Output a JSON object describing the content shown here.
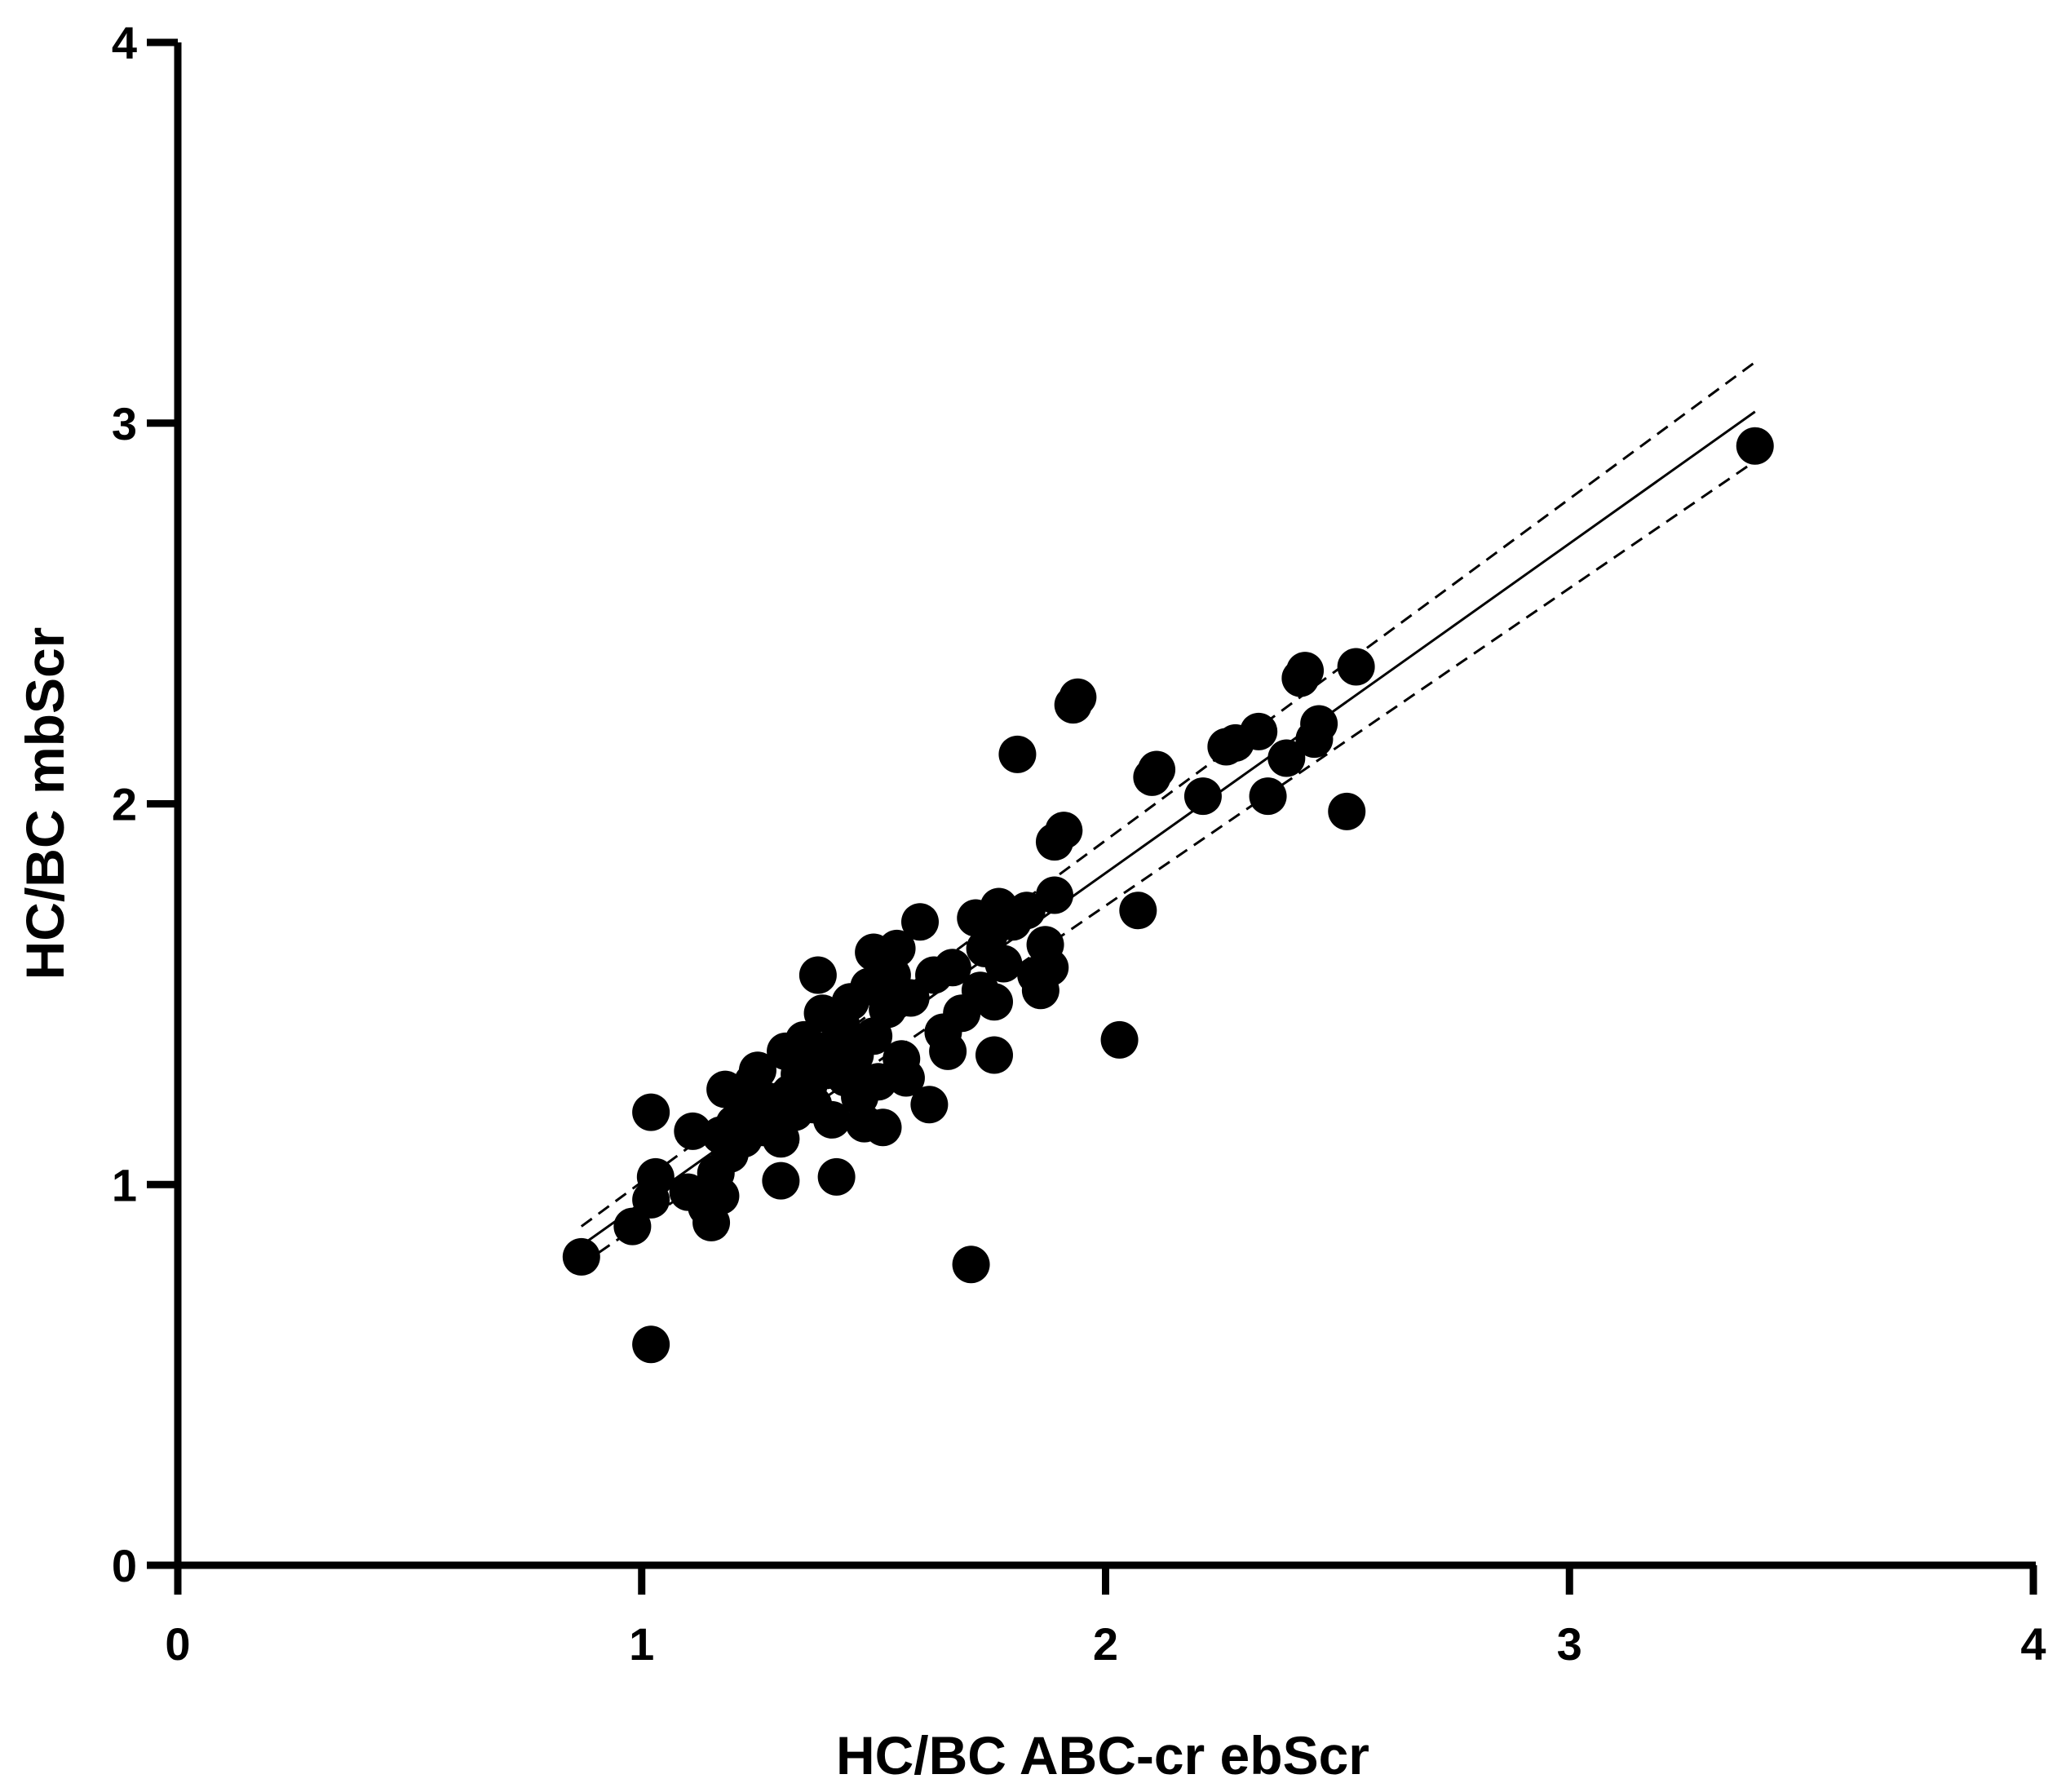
{
  "chart_data": {
    "type": "scatter",
    "title": "",
    "xlabel": "HC/BC ABC-cr ebScr",
    "ylabel": "HC/BC mbScr",
    "xlim": [
      0,
      4
    ],
    "ylim": [
      0,
      4
    ],
    "xticks": [
      "0",
      "1",
      "2",
      "3",
      "4"
    ],
    "yticks": [
      "0",
      "1",
      "2",
      "3",
      "4"
    ],
    "grid": false,
    "legend": "none",
    "colors": {
      "points": "#000000",
      "axes": "#000000",
      "fit_line": "#000000",
      "ci_line": "#000000"
    },
    "points": [
      {
        "x": 0.87,
        "y": 0.81
      },
      {
        "x": 0.98,
        "y": 0.89
      },
      {
        "x": 1.02,
        "y": 0.96
      },
      {
        "x": 1.03,
        "y": 1.02
      },
      {
        "x": 1.02,
        "y": 1.19
      },
      {
        "x": 1.02,
        "y": 0.58
      },
      {
        "x": 1.1,
        "y": 0.98
      },
      {
        "x": 1.11,
        "y": 1.14
      },
      {
        "x": 1.14,
        "y": 0.94
      },
      {
        "x": 1.15,
        "y": 0.9
      },
      {
        "x": 1.17,
        "y": 0.97
      },
      {
        "x": 1.16,
        "y": 1.03
      },
      {
        "x": 1.17,
        "y": 1.13
      },
      {
        "x": 1.18,
        "y": 1.25
      },
      {
        "x": 1.19,
        "y": 1.08
      },
      {
        "x": 1.2,
        "y": 1.16
      },
      {
        "x": 1.22,
        "y": 1.12
      },
      {
        "x": 1.23,
        "y": 1.2
      },
      {
        "x": 1.24,
        "y": 1.27
      },
      {
        "x": 1.25,
        "y": 1.3
      },
      {
        "x": 1.26,
        "y": 1.15
      },
      {
        "x": 1.27,
        "y": 1.22
      },
      {
        "x": 1.28,
        "y": 1.18
      },
      {
        "x": 1.3,
        "y": 1.12
      },
      {
        "x": 1.3,
        "y": 1.01
      },
      {
        "x": 1.31,
        "y": 1.35
      },
      {
        "x": 1.32,
        "y": 1.24
      },
      {
        "x": 1.33,
        "y": 1.19
      },
      {
        "x": 1.34,
        "y": 1.29
      },
      {
        "x": 1.35,
        "y": 1.38
      },
      {
        "x": 1.36,
        "y": 1.26
      },
      {
        "x": 1.37,
        "y": 1.21
      },
      {
        "x": 1.38,
        "y": 1.55
      },
      {
        "x": 1.38,
        "y": 1.33
      },
      {
        "x": 1.39,
        "y": 1.45
      },
      {
        "x": 1.4,
        "y": 1.3
      },
      {
        "x": 1.41,
        "y": 1.17
      },
      {
        "x": 1.42,
        "y": 1.37
      },
      {
        "x": 1.42,
        "y": 1.02
      },
      {
        "x": 1.43,
        "y": 1.42
      },
      {
        "x": 1.44,
        "y": 1.28
      },
      {
        "x": 1.45,
        "y": 1.48
      },
      {
        "x": 1.46,
        "y": 1.34
      },
      {
        "x": 1.47,
        "y": 1.23
      },
      {
        "x": 1.48,
        "y": 1.16
      },
      {
        "x": 1.49,
        "y": 1.52
      },
      {
        "x": 1.5,
        "y": 1.39
      },
      {
        "x": 1.5,
        "y": 1.61
      },
      {
        "x": 1.51,
        "y": 1.27
      },
      {
        "x": 1.52,
        "y": 1.15
      },
      {
        "x": 1.53,
        "y": 1.46
      },
      {
        "x": 1.54,
        "y": 1.55
      },
      {
        "x": 1.55,
        "y": 1.62
      },
      {
        "x": 1.56,
        "y": 1.33
      },
      {
        "x": 1.57,
        "y": 1.28
      },
      {
        "x": 1.58,
        "y": 1.49
      },
      {
        "x": 1.6,
        "y": 1.69
      },
      {
        "x": 1.62,
        "y": 1.21
      },
      {
        "x": 1.63,
        "y": 1.55
      },
      {
        "x": 1.65,
        "y": 1.4
      },
      {
        "x": 1.66,
        "y": 1.35
      },
      {
        "x": 1.67,
        "y": 1.57
      },
      {
        "x": 1.69,
        "y": 1.45
      },
      {
        "x": 1.71,
        "y": 0.79
      },
      {
        "x": 1.72,
        "y": 1.7
      },
      {
        "x": 1.73,
        "y": 1.51
      },
      {
        "x": 1.74,
        "y": 1.62
      },
      {
        "x": 1.75,
        "y": 1.66
      },
      {
        "x": 1.76,
        "y": 1.48
      },
      {
        "x": 1.76,
        "y": 1.34
      },
      {
        "x": 1.77,
        "y": 1.73
      },
      {
        "x": 1.78,
        "y": 1.58
      },
      {
        "x": 1.8,
        "y": 1.69
      },
      {
        "x": 1.81,
        "y": 2.13
      },
      {
        "x": 1.83,
        "y": 1.72
      },
      {
        "x": 1.85,
        "y": 1.55
      },
      {
        "x": 1.86,
        "y": 1.51
      },
      {
        "x": 1.87,
        "y": 1.63
      },
      {
        "x": 1.88,
        "y": 1.57
      },
      {
        "x": 1.89,
        "y": 1.76
      },
      {
        "x": 1.89,
        "y": 1.9
      },
      {
        "x": 1.91,
        "y": 1.93
      },
      {
        "x": 1.93,
        "y": 2.26
      },
      {
        "x": 1.94,
        "y": 2.28
      },
      {
        "x": 2.03,
        "y": 1.38
      },
      {
        "x": 2.07,
        "y": 1.72
      },
      {
        "x": 2.1,
        "y": 2.07
      },
      {
        "x": 2.11,
        "y": 2.09
      },
      {
        "x": 2.21,
        "y": 2.02
      },
      {
        "x": 2.26,
        "y": 2.15
      },
      {
        "x": 2.28,
        "y": 2.16
      },
      {
        "x": 2.33,
        "y": 2.19
      },
      {
        "x": 2.35,
        "y": 2.02
      },
      {
        "x": 2.39,
        "y": 2.12
      },
      {
        "x": 2.42,
        "y": 2.33
      },
      {
        "x": 2.43,
        "y": 2.35
      },
      {
        "x": 2.45,
        "y": 2.17
      },
      {
        "x": 2.46,
        "y": 2.21
      },
      {
        "x": 2.52,
        "y": 1.98
      },
      {
        "x": 2.54,
        "y": 2.36
      },
      {
        "x": 3.4,
        "y": 2.94
      }
    ],
    "fit_line": {
      "x": [
        0.87,
        3.4
      ],
      "y": [
        0.84,
        3.03
      ]
    },
    "ci_upper": {
      "x": [
        0.87,
        3.4
      ],
      "y": [
        0.89,
        3.16
      ]
    },
    "ci_lower": {
      "x": [
        0.87,
        3.4
      ],
      "y": [
        0.79,
        2.9
      ]
    }
  }
}
